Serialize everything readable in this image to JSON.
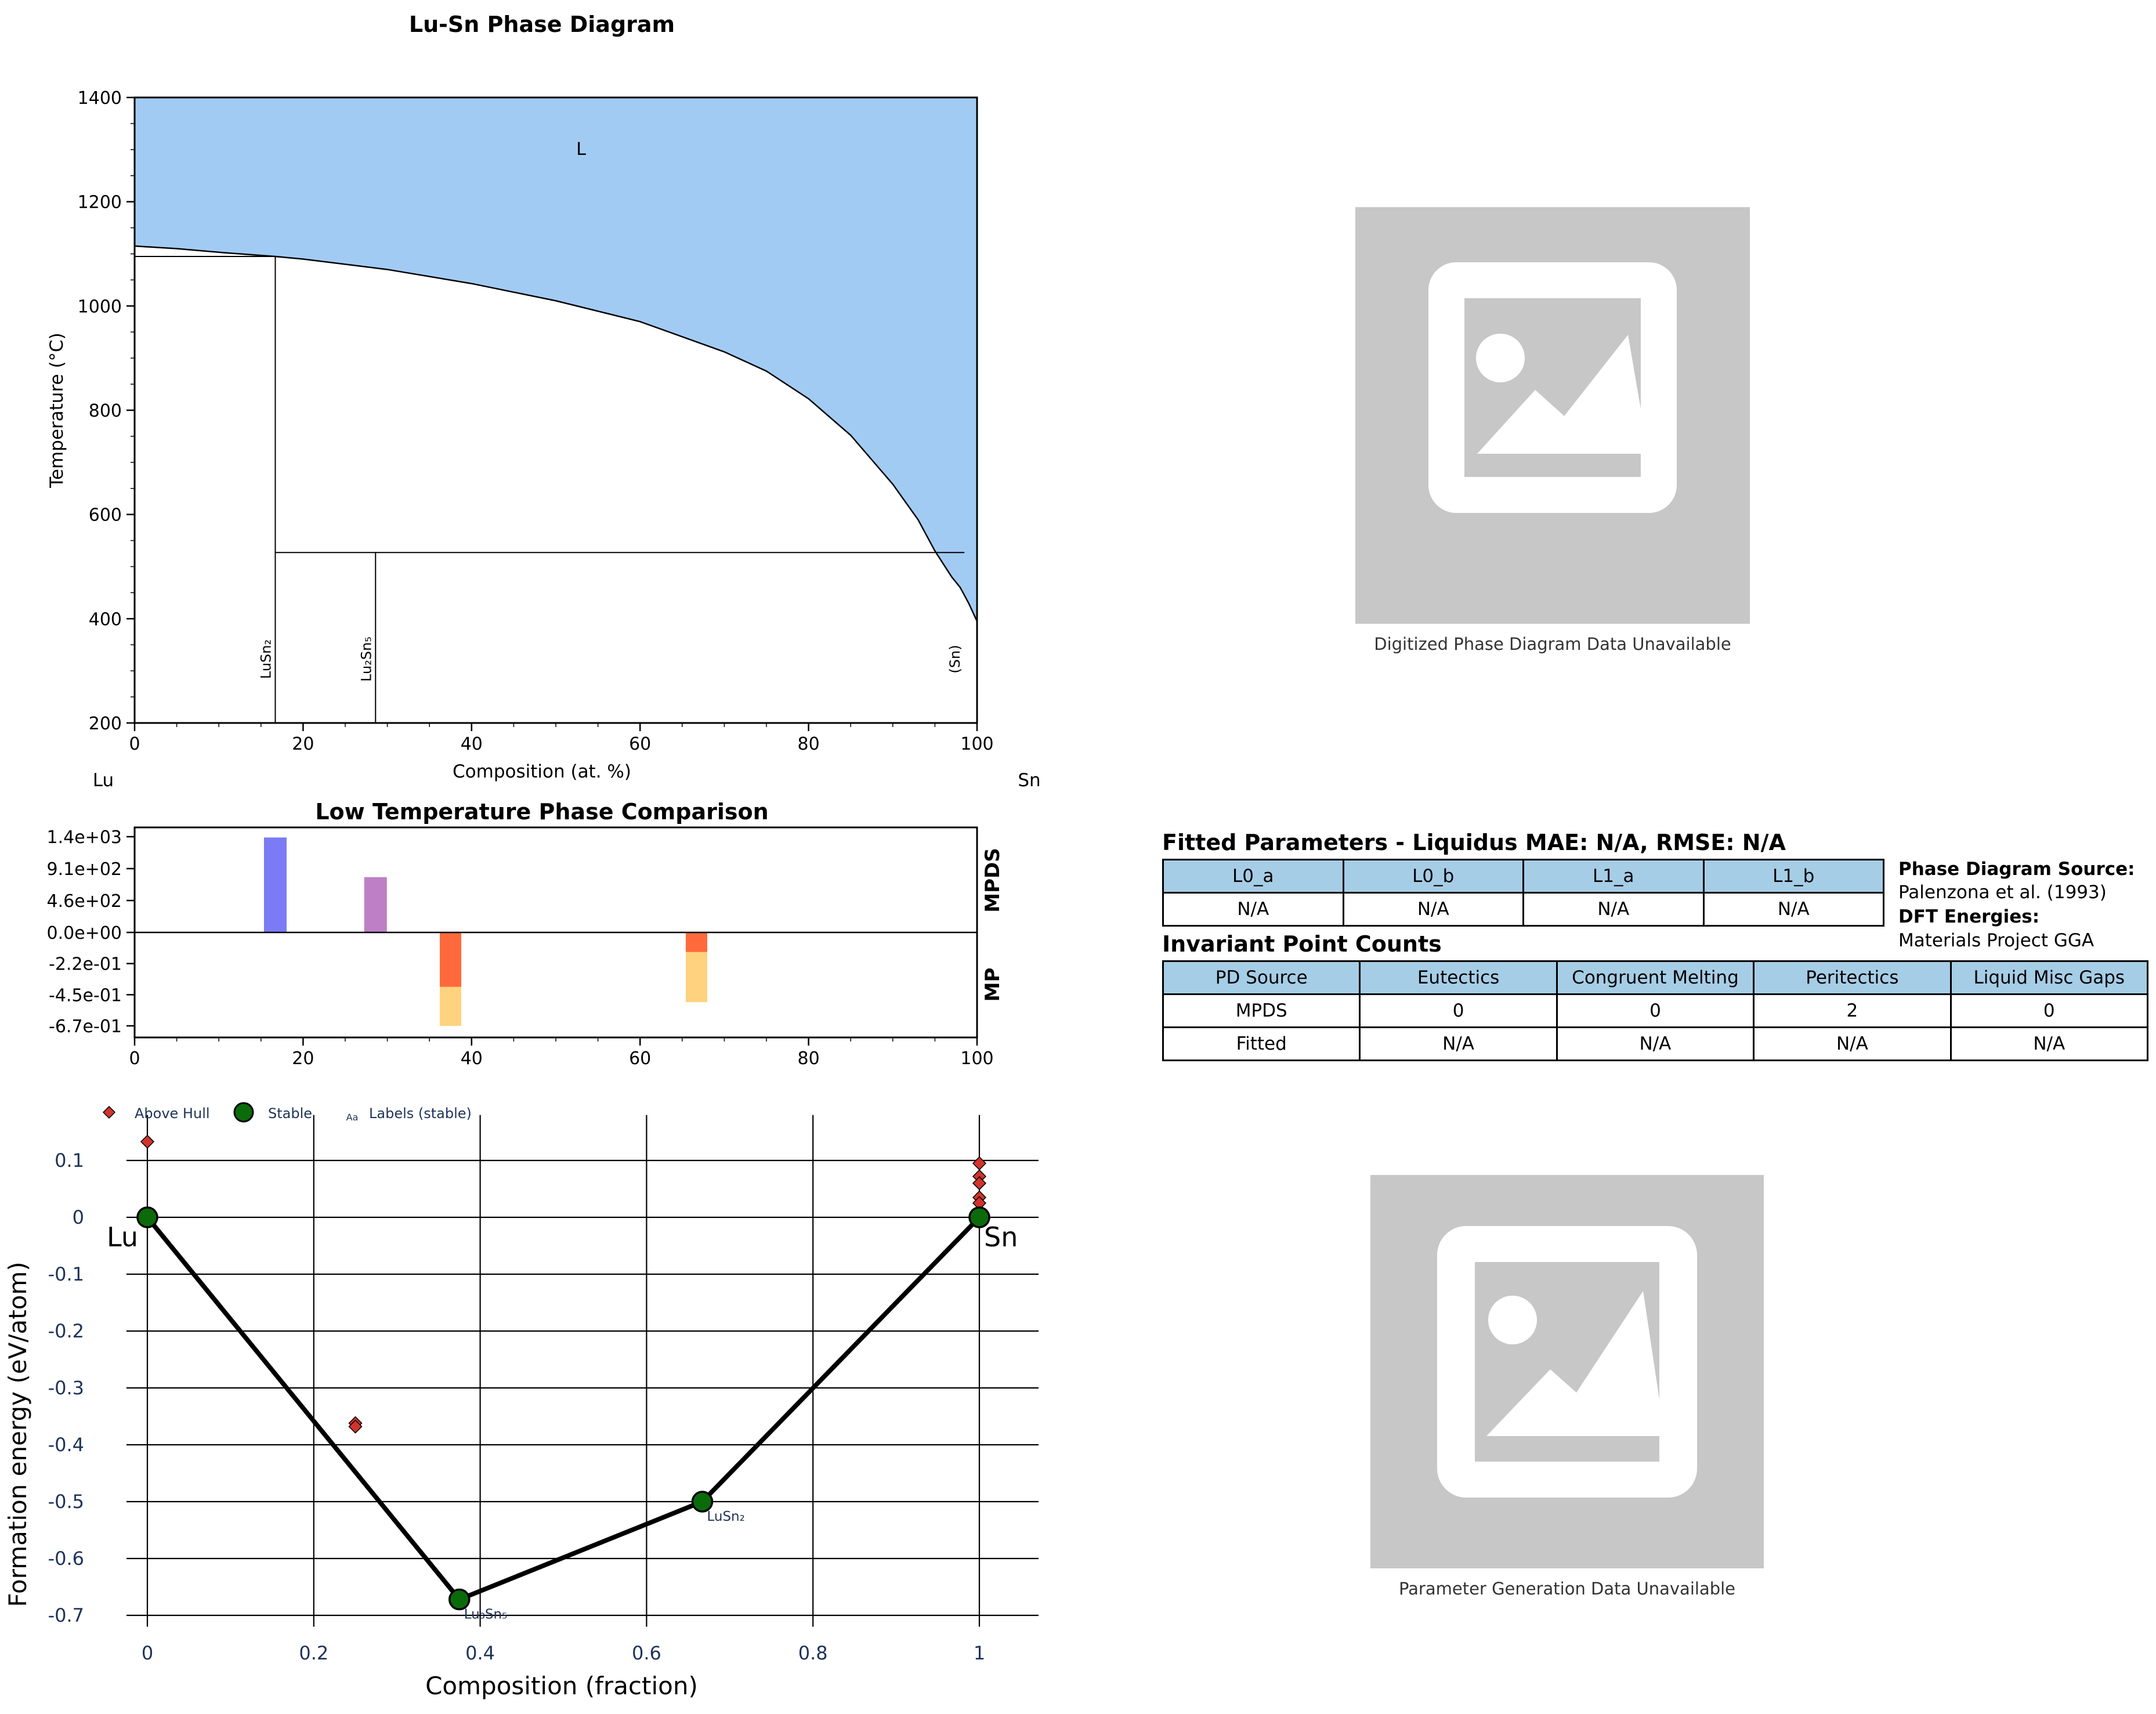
{
  "phase_diagram": {
    "chart_data": {
      "type": "area",
      "title": "Lu-Sn Phase Diagram",
      "xlabel": "Composition (at. %)",
      "ylabel": "Temperature (°C)",
      "xlim": [
        0,
        100
      ],
      "ylim": [
        200,
        1400
      ],
      "x_ticks": [
        "0",
        "20",
        "40",
        "60",
        "80",
        "100"
      ],
      "y_ticks": [
        "200",
        "400",
        "600",
        "800",
        "1000",
        "1200",
        "1400"
      ],
      "x_tick_values": [
        0,
        20,
        40,
        60,
        80,
        100
      ],
      "y_tick_values": [
        200,
        400,
        600,
        800,
        1000,
        1200,
        1400
      ],
      "left_element": "Lu",
      "right_element": "Sn",
      "liquid_label": "L",
      "liquid_label_pos": [
        53,
        1290
      ],
      "liquidus": [
        [
          0,
          1115
        ],
        [
          5,
          1110
        ],
        [
          10,
          1103
        ],
        [
          16.7,
          1095
        ],
        [
          20,
          1090
        ],
        [
          30,
          1070
        ],
        [
          40,
          1043
        ],
        [
          50,
          1010
        ],
        [
          60,
          970
        ],
        [
          70,
          912
        ],
        [
          75,
          875
        ],
        [
          80,
          822
        ],
        [
          85,
          752
        ],
        [
          90,
          658
        ],
        [
          93,
          590
        ],
        [
          95,
          530
        ],
        [
          97,
          480
        ],
        [
          98,
          460
        ],
        [
          99,
          430
        ],
        [
          100,
          395
        ]
      ],
      "color_liquid": "#a2cbf4",
      "phases": [
        {
          "label": "LuSn₂",
          "x": 16.7,
          "top": 1095
        },
        {
          "label": "Lu₂Sn₅",
          "x": 28.6,
          "top": 527
        },
        {
          "label": "(Sn)",
          "x": 98.5,
          "top": 200
        }
      ],
      "horizontal_lines": [
        {
          "x1": 0,
          "x2": 16.7,
          "y": 1095
        },
        {
          "x1": 16.7,
          "x2": 98.5,
          "y": 527
        }
      ]
    }
  },
  "comparison": {
    "chart_data": {
      "type": "bar",
      "title": "Low Temperature Phase Comparison",
      "xlim": [
        0,
        100
      ],
      "x_ticks": [
        "0",
        "20",
        "40",
        "60",
        "80",
        "100"
      ],
      "x_tick_values": [
        0,
        20,
        40,
        60,
        80,
        100
      ],
      "y_ticks": [
        "1.4e+03",
        "9.1e+02",
        "4.6e+02",
        "0.0e+00",
        "-2.2e-01",
        "-4.5e-01",
        "-6.7e-01"
      ],
      "upper_label": "MPDS",
      "lower_label": "MP",
      "upper_ylim": [
        0,
        1400
      ],
      "lower_ylim": [
        -0.67,
        0
      ],
      "mpds_bars": [
        {
          "x": 16.7,
          "value": 1380,
          "color": "#7b7bf5"
        },
        {
          "x": 28.6,
          "value": 800,
          "color": "#bf7fc6"
        }
      ],
      "mp_bars": [
        {
          "x": 37.5,
          "hull": -0.39,
          "formation": -0.67
        },
        {
          "x": 66.7,
          "hull": -0.14,
          "formation": -0.5
        }
      ],
      "color_mp_hull": "#ff6a3d",
      "color_mp_formation": "#ffd27f"
    }
  },
  "hull": {
    "chart_data": {
      "type": "scatter",
      "xlabel": "Composition (fraction)",
      "ylabel": "Formation energy (eV/atom)",
      "xlim": [
        -0.05,
        1.07
      ],
      "ylim": [
        -0.72,
        0.18
      ],
      "x_ticks": [
        "0",
        "0.2",
        "0.4",
        "0.6",
        "0.8",
        "1"
      ],
      "x_tick_values": [
        0,
        0.2,
        0.4,
        0.6,
        0.8,
        1
      ],
      "y_ticks": [
        "0.1",
        "0",
        "-0.1",
        "-0.2",
        "-0.3",
        "-0.4",
        "-0.5",
        "-0.6",
        "-0.7"
      ],
      "y_tick_values": [
        0.1,
        0,
        -0.1,
        -0.2,
        -0.3,
        -0.4,
        -0.5,
        -0.6,
        -0.7
      ],
      "legend": [
        "Above Hull",
        "Stable",
        "Labels (stable)"
      ],
      "legend_sample_text": "Aa",
      "legend_placement": "top-left",
      "stable": [
        {
          "x": 0,
          "y": 0,
          "label": "Lu"
        },
        {
          "x": 0.375,
          "y": -0.672,
          "label": "Lu₃Sn₅"
        },
        {
          "x": 0.667,
          "y": -0.5,
          "label": "LuSn₂"
        },
        {
          "x": 1,
          "y": 0,
          "label": "Sn"
        }
      ],
      "above_hull": [
        {
          "x": 0,
          "y": 0.133
        },
        {
          "x": 0,
          "y": 0
        },
        {
          "x": 0.25,
          "y": -0.362
        },
        {
          "x": 0.25,
          "y": -0.368
        },
        {
          "x": 1,
          "y": 0.095
        },
        {
          "x": 1,
          "y": 0.072
        },
        {
          "x": 1,
          "y": 0.06
        },
        {
          "x": 1,
          "y": 0.035
        },
        {
          "x": 1,
          "y": 0.025
        }
      ],
      "color_stable": "#0b6b0b",
      "color_above": "#d0342c",
      "color_axis_text": "#1e3359"
    }
  },
  "placeholders": {
    "top_caption": "Digitized Phase Diagram Data Unavailable",
    "bottom_caption": "Parameter Generation Data Unavailable"
  },
  "fitted": {
    "title": "Fitted Parameters - Liquidus MAE: N/A, RMSE: N/A",
    "headers": [
      "L0_a",
      "L0_b",
      "L1_a",
      "L1_b"
    ],
    "values": [
      "N/A",
      "N/A",
      "N/A",
      "N/A"
    ]
  },
  "source": {
    "pd_label": "Phase Diagram Source:",
    "pd_value": "Palenzona et al. (1993)",
    "dft_label": "DFT Energies:",
    "dft_value": "Materials Project GGA"
  },
  "invariant": {
    "title": "Invariant Point Counts",
    "headers": [
      "PD Source",
      "Eutectics",
      "Congruent Melting",
      "Peritectics",
      "Liquid Misc Gaps"
    ],
    "rows": [
      [
        "MPDS",
        "0",
        "0",
        "2",
        "0"
      ],
      [
        "Fitted",
        "N/A",
        "N/A",
        "N/A",
        "N/A"
      ]
    ]
  }
}
